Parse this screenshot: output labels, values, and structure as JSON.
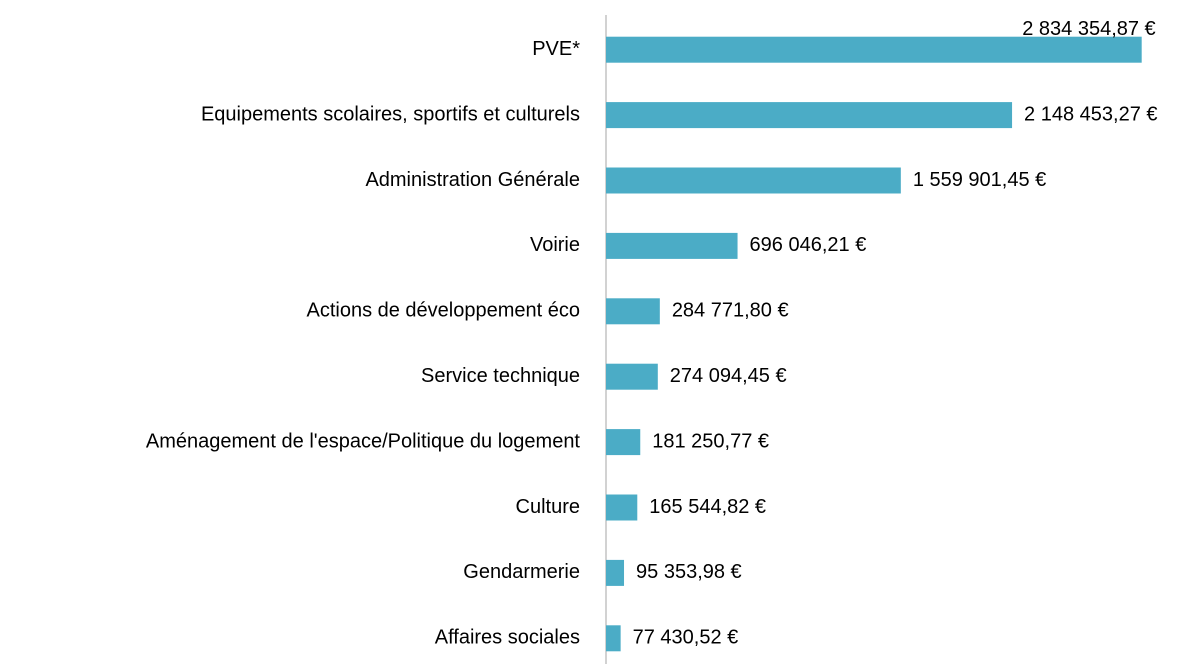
{
  "chart_data": {
    "type": "hbar",
    "categories": [
      "PVE*",
      "Equipements scolaires, sportifs et culturels",
      "Administration Générale",
      "Voirie",
      "Actions de développement éco",
      "Service technique",
      "Aménagement de l'espace/Politique du logement",
      "Culture",
      "Gendarmerie",
      "Affaires sociales"
    ],
    "values": [
      2834354.87,
      2148453.27,
      1559901.45,
      696046.21,
      284771.8,
      274094.45,
      181250.77,
      165544.82,
      95353.98,
      77430.52
    ],
    "value_labels": [
      "2 834 354,87 €",
      "2 148 453,27 €",
      "1 559 901,45 €",
      "696 046,21 €",
      "284 771,80 €",
      "274 094,45 €",
      "181 250,77 €",
      "165 544,82 €",
      "95 353,98 €",
      "77 430,52 €"
    ],
    "color": "#4bacc6",
    "xlim": [
      0,
      3000000
    ]
  }
}
